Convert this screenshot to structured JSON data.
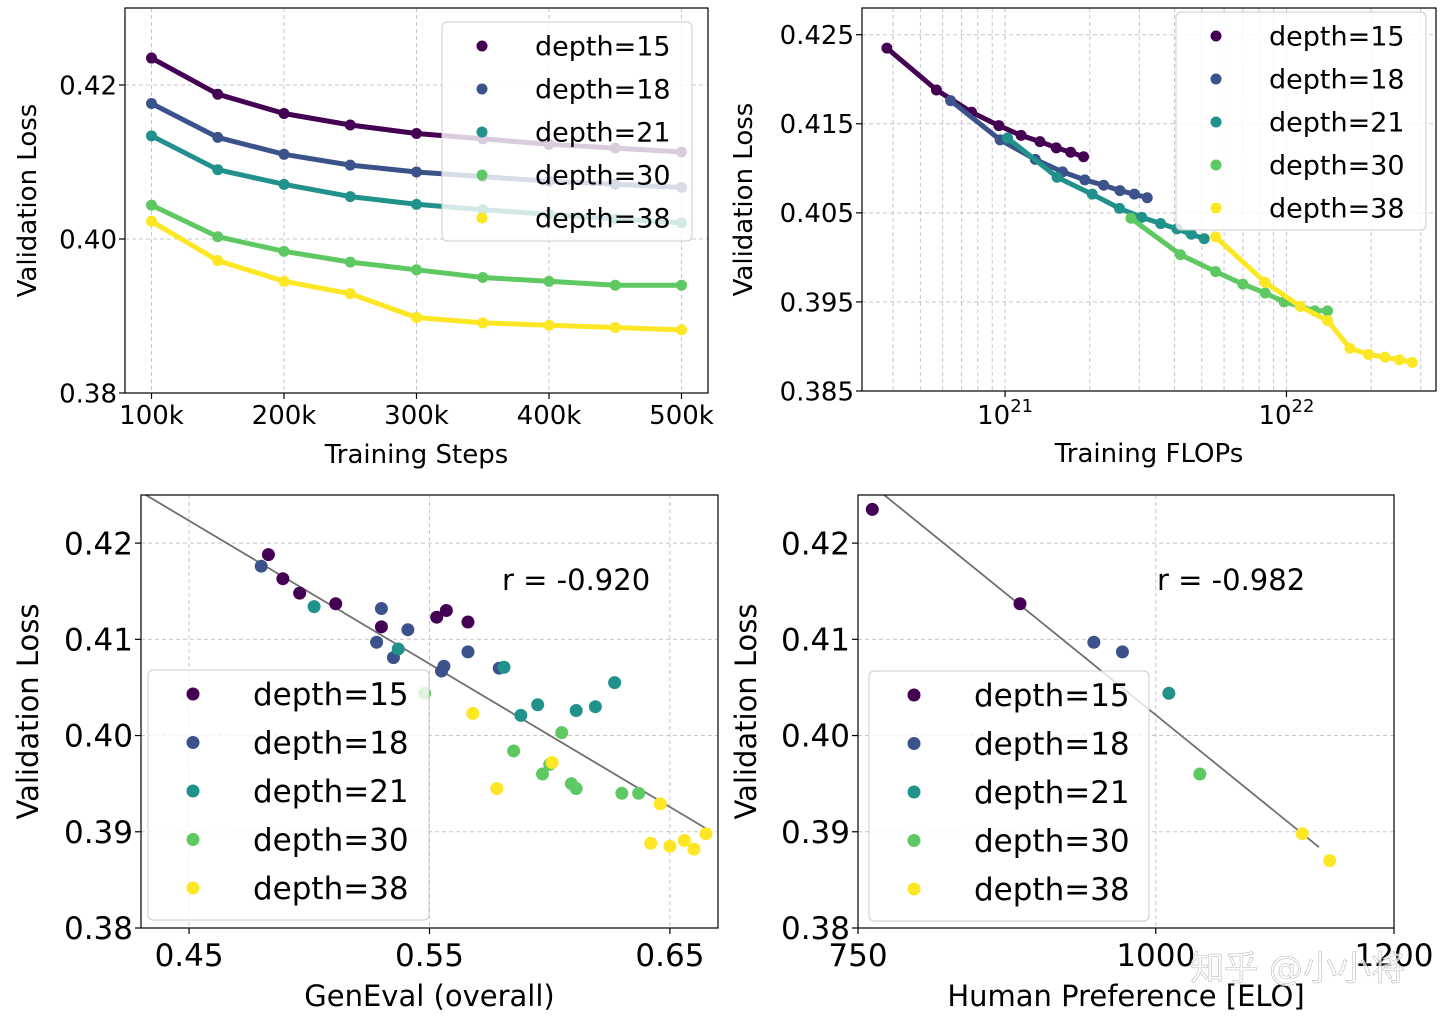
{
  "colors": {
    "depth=15": "#440154",
    "depth=18": "#3b528b",
    "depth=21": "#21918c",
    "depth=30": "#5ec962",
    "depth=38": "#fde725"
  },
  "watermark": "知乎 @小小将",
  "chart_data": [
    {
      "id": "tl",
      "type": "line",
      "xlabel": "Training Steps",
      "ylabel": "Validation Loss",
      "xlim": [
        80000,
        520000
      ],
      "ylim": [
        0.38,
        0.43
      ],
      "x_ticks": [
        100000,
        200000,
        300000,
        400000,
        500000
      ],
      "x_tick_labels": [
        "100k",
        "200k",
        "300k",
        "400k",
        "500k"
      ],
      "y_ticks": [
        0.38,
        0.4,
        0.42
      ],
      "y_tick_labels": [
        "0.38",
        "0.40",
        "0.42"
      ],
      "grid": true,
      "legend": "top-right",
      "series": [
        {
          "name": "depth=15",
          "x": [
            100000,
            150000,
            200000,
            250000,
            300000,
            350000,
            400000,
            450000,
            500000
          ],
          "y": [
            0.4235,
            0.4188,
            0.4163,
            0.4148,
            0.4137,
            0.413,
            0.4123,
            0.4118,
            0.4113
          ]
        },
        {
          "name": "depth=18",
          "x": [
            100000,
            150000,
            200000,
            250000,
            300000,
            350000,
            400000,
            450000,
            500000
          ],
          "y": [
            0.4176,
            0.4132,
            0.411,
            0.4096,
            0.4087,
            0.4081,
            0.4075,
            0.4071,
            0.4067
          ]
        },
        {
          "name": "depth=21",
          "x": [
            100000,
            150000,
            200000,
            250000,
            300000,
            350000,
            400000,
            450000,
            500000
          ],
          "y": [
            0.4134,
            0.409,
            0.4071,
            0.4055,
            0.4045,
            0.4038,
            0.4032,
            0.4026,
            0.4021
          ]
        },
        {
          "name": "depth=30",
          "x": [
            100000,
            150000,
            200000,
            250000,
            300000,
            350000,
            400000,
            450000,
            500000
          ],
          "y": [
            0.4044,
            0.4003,
            0.3984,
            0.397,
            0.396,
            0.395,
            0.3945,
            0.394,
            0.394
          ]
        },
        {
          "name": "depth=38",
          "x": [
            100000,
            150000,
            200000,
            250000,
            300000,
            350000,
            400000,
            450000,
            500000
          ],
          "y": [
            0.4023,
            0.3972,
            0.3945,
            0.3929,
            0.3898,
            0.3891,
            0.3888,
            0.3885,
            0.3882
          ]
        }
      ]
    },
    {
      "id": "tr",
      "type": "line",
      "xlabel": "Training FLOPs",
      "ylabel": "Validation Loss",
      "xscale": "log",
      "xlim": [
        3.1e+20,
        3.4e+22
      ],
      "ylim": [
        0.385,
        0.428
      ],
      "x_ticks": [
        1e+21,
        1e+22
      ],
      "x_tick_labels": [
        "10²¹",
        "10²²"
      ],
      "y_ticks": [
        0.385,
        0.395,
        0.405,
        0.415,
        0.425
      ],
      "y_tick_labels": [
        "0.385",
        "0.395",
        "0.405",
        "0.415",
        "0.425"
      ],
      "grid": true,
      "legend": "top-right",
      "series": [
        {
          "name": "depth=15",
          "x": [
            3.8e+20,
            5.7e+20,
            7.6e+20,
            9.5e+20,
            1.14e+21,
            1.33e+21,
            1.52e+21,
            1.71e+21,
            1.9e+21
          ],
          "y": [
            0.4235,
            0.4188,
            0.4163,
            0.4148,
            0.4137,
            0.413,
            0.4123,
            0.4118,
            0.4113
          ]
        },
        {
          "name": "depth=18",
          "x": [
            6.4e+20,
            9.6e+20,
            1.28e+21,
            1.6e+21,
            1.92e+21,
            2.24e+21,
            2.56e+21,
            2.88e+21,
            3.2e+21
          ],
          "y": [
            0.4176,
            0.4132,
            0.411,
            0.4096,
            0.4087,
            0.4081,
            0.4075,
            0.4071,
            0.4067
          ]
        },
        {
          "name": "depth=21",
          "x": [
            1.02e+21,
            1.53e+21,
            2.04e+21,
            2.55e+21,
            3.06e+21,
            3.57e+21,
            4.08e+21,
            4.59e+21,
            5.1e+21
          ],
          "y": [
            0.4134,
            0.409,
            0.4071,
            0.4055,
            0.4045,
            0.4038,
            0.4032,
            0.4026,
            0.4021
          ]
        },
        {
          "name": "depth=30",
          "x": [
            2.8e+21,
            4.2e+21,
            5.6e+21,
            7e+21,
            8.4e+21,
            9.8e+21,
            1.12e+22,
            1.26e+22,
            1.4e+22
          ],
          "y": [
            0.4044,
            0.4003,
            0.3984,
            0.397,
            0.396,
            0.395,
            0.3945,
            0.394,
            0.394
          ]
        },
        {
          "name": "depth=38",
          "x": [
            5.6e+21,
            8.4e+21,
            1.12e+22,
            1.4e+22,
            1.68e+22,
            1.96e+22,
            2.24e+22,
            2.52e+22,
            2.8e+22
          ],
          "y": [
            0.4023,
            0.3972,
            0.3945,
            0.3929,
            0.3898,
            0.3891,
            0.3888,
            0.3885,
            0.3882
          ]
        }
      ]
    },
    {
      "id": "bl",
      "type": "scatter",
      "xlabel": "GenEval (overall)",
      "ylabel": "Validation Loss",
      "xlim": [
        0.43,
        0.67
      ],
      "ylim": [
        0.38,
        0.425
      ],
      "x_ticks": [
        0.45,
        0.55,
        0.65
      ],
      "x_tick_labels": [
        "0.45",
        "0.55",
        "0.65"
      ],
      "y_ticks": [
        0.38,
        0.39,
        0.4,
        0.41,
        0.42
      ],
      "y_tick_labels": [
        "0.38",
        "0.39",
        "0.40",
        "0.41",
        "0.42"
      ],
      "grid": true,
      "legend": "lower-left",
      "annotation": "r = -0.920",
      "fit_line": {
        "x": [
          0.43,
          0.666
        ],
        "y": [
          0.4253,
          0.3902
        ]
      },
      "series": [
        {
          "name": "depth=15",
          "x": [
            0.483,
            0.489,
            0.496,
            0.511,
            0.53,
            0.553,
            0.557,
            0.566
          ],
          "y": [
            0.4188,
            0.4163,
            0.4148,
            0.4137,
            0.4113,
            0.4123,
            0.413,
            0.4118
          ]
        },
        {
          "name": "depth=18",
          "x": [
            0.48,
            0.528,
            0.53,
            0.535,
            0.541,
            0.555,
            0.556,
            0.566,
            0.579
          ],
          "y": [
            0.4176,
            0.4097,
            0.4132,
            0.4081,
            0.411,
            0.4067,
            0.4072,
            0.4087,
            0.407
          ]
        },
        {
          "name": "depth=21",
          "x": [
            0.502,
            0.537,
            0.581,
            0.588,
            0.595,
            0.611,
            0.619,
            0.627
          ],
          "y": [
            0.4134,
            0.409,
            0.4071,
            0.4021,
            0.4032,
            0.4026,
            0.403,
            0.4055
          ]
        },
        {
          "name": "depth=30",
          "x": [
            0.548,
            0.585,
            0.597,
            0.6,
            0.605,
            0.609,
            0.611,
            0.63,
            0.637
          ],
          "y": [
            0.4044,
            0.3984,
            0.396,
            0.397,
            0.4003,
            0.395,
            0.3945,
            0.394,
            0.394
          ]
        },
        {
          "name": "depth=38",
          "x": [
            0.568,
            0.578,
            0.601,
            0.646,
            0.642,
            0.65,
            0.656,
            0.66,
            0.665
          ],
          "y": [
            0.4023,
            0.3945,
            0.3972,
            0.3929,
            0.3888,
            0.3885,
            0.3891,
            0.3882,
            0.3898
          ]
        }
      ]
    },
    {
      "id": "br",
      "type": "scatter",
      "xlabel": "Human Preference [ELO]",
      "ylabel": "Validation Loss",
      "xlim": [
        750,
        1200
      ],
      "ylim": [
        0.38,
        0.425
      ],
      "x_ticks": [
        750,
        1000,
        1200
      ],
      "x_tick_labels": [
        "750",
        "1000",
        "1200"
      ],
      "y_ticks": [
        0.38,
        0.39,
        0.4,
        0.41,
        0.42
      ],
      "y_tick_labels": [
        "0.38",
        "0.39",
        "0.40",
        "0.41",
        "0.42"
      ],
      "grid": true,
      "legend": "lower-left",
      "annotation": "r = -0.982",
      "fit_line": {
        "x": [
          769,
          1137
        ],
        "y": [
          0.4253,
          0.3884
        ]
      },
      "series": [
        {
          "name": "depth=15",
          "x": [
            762,
            886
          ],
          "y": [
            0.4235,
            0.4137
          ]
        },
        {
          "name": "depth=18",
          "x": [
            948,
            972
          ],
          "y": [
            0.4097,
            0.4087
          ]
        },
        {
          "name": "depth=21",
          "x": [
            1011
          ],
          "y": [
            0.4044
          ]
        },
        {
          "name": "depth=30",
          "x": [
            1037
          ],
          "y": [
            0.396
          ]
        },
        {
          "name": "depth=38",
          "x": [
            1123,
            1146
          ],
          "y": [
            0.3898,
            0.387
          ]
        }
      ]
    }
  ]
}
